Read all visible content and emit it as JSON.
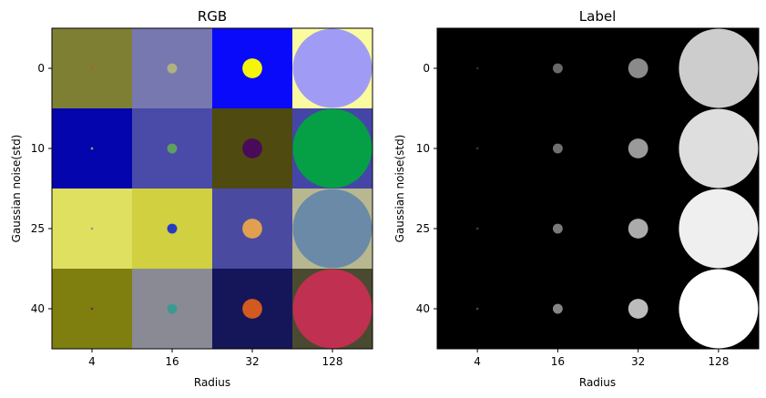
{
  "chart_data": [
    {
      "type": "heatmap",
      "title": "RGB",
      "xlabel": "Radius",
      "ylabel": "Gaussian noise(std)",
      "x_ticks": [
        "4",
        "16",
        "32",
        "128"
      ],
      "y_ticks": [
        "0",
        "10",
        "25",
        "40"
      ],
      "grid": false,
      "cells": [
        [
          {
            "bg": "#7f7f34",
            "fg": "#c05050",
            "radius": 4
          },
          {
            "bg": "#7878b0",
            "fg": "#b0b080",
            "radius": 16
          },
          {
            "bg": "#0a0afa",
            "fg": "#f5f50a",
            "radius": 32
          },
          {
            "bg": "#fafaa0",
            "fg": "#a09cf5",
            "radius": 128
          }
        ],
        [
          {
            "bg": "#0505ad",
            "fg": "#a0a050",
            "radius": 4
          },
          {
            "bg": "#4a4aa8",
            "fg": "#5fa05f",
            "radius": 16
          },
          {
            "bg": "#4f4a0f",
            "fg": "#4a0a5a",
            "radius": 32
          },
          {
            "bg": "#4545a8",
            "fg": "#05a045",
            "radius": 128
          }
        ],
        [
          {
            "bg": "#e0e060",
            "fg": "#c080a0",
            "radius": 4
          },
          {
            "bg": "#d0d040",
            "fg": "#2a3ac0",
            "radius": 16
          },
          {
            "bg": "#4a4aa0",
            "fg": "#e0a050",
            "radius": 32
          },
          {
            "bg": "#b8b890",
            "fg": "#6a8aa8",
            "radius": 128
          }
        ],
        [
          {
            "bg": "#7f7f10",
            "fg": "#7a2a5a",
            "radius": 4
          },
          {
            "bg": "#8a8a95",
            "fg": "#3a9a90",
            "radius": 16
          },
          {
            "bg": "#15155a",
            "fg": "#d05a20",
            "radius": 32
          },
          {
            "bg": "#4a4a30",
            "fg": "#c03050",
            "radius": 128
          }
        ]
      ]
    },
    {
      "type": "heatmap",
      "title": "Label",
      "xlabel": "Radius",
      "ylabel": "Gaussian noise(std)",
      "x_ticks": [
        "4",
        "16",
        "32",
        "128"
      ],
      "y_ticks": [
        "0",
        "10",
        "25",
        "40"
      ],
      "grid": false,
      "cells": [
        [
          {
            "bg": "#000000",
            "fg": "#2a2a2a",
            "radius": 4
          },
          {
            "bg": "#000000",
            "fg": "#686868",
            "radius": 16
          },
          {
            "bg": "#000000",
            "fg": "#8a8a8a",
            "radius": 32
          },
          {
            "bg": "#000000",
            "fg": "#cdcdcd",
            "radius": 128
          }
        ],
        [
          {
            "bg": "#000000",
            "fg": "#333333",
            "radius": 4
          },
          {
            "bg": "#000000",
            "fg": "#707070",
            "radius": 16
          },
          {
            "bg": "#000000",
            "fg": "#9a9a9a",
            "radius": 32
          },
          {
            "bg": "#000000",
            "fg": "#dedede",
            "radius": 128
          }
        ],
        [
          {
            "bg": "#000000",
            "fg": "#3a3a3a",
            "radius": 4
          },
          {
            "bg": "#000000",
            "fg": "#7a7a7a",
            "radius": 16
          },
          {
            "bg": "#000000",
            "fg": "#ababab",
            "radius": 32
          },
          {
            "bg": "#000000",
            "fg": "#efefef",
            "radius": 128
          }
        ],
        [
          {
            "bg": "#000000",
            "fg": "#444444",
            "radius": 4
          },
          {
            "bg": "#000000",
            "fg": "#858585",
            "radius": 16
          },
          {
            "bg": "#000000",
            "fg": "#bcbcbc",
            "radius": 32
          },
          {
            "bg": "#000000",
            "fg": "#ffffff",
            "radius": 128
          }
        ]
      ]
    }
  ]
}
